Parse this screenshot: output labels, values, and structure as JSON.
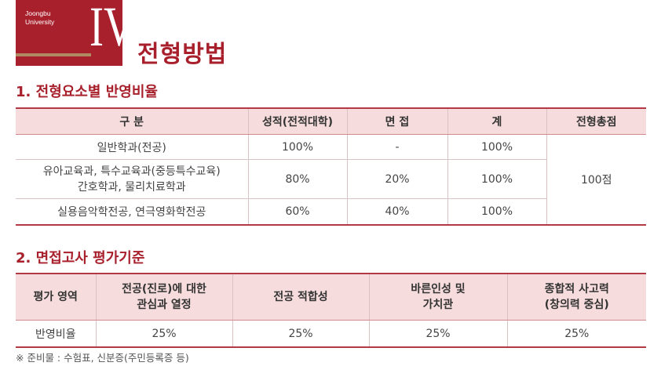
{
  "badge": {
    "university_line1": "Joongbu",
    "university_line2": "University",
    "numeral": "IV"
  },
  "page_title": "전형방법",
  "section1": {
    "title": "1. 전형요소별 반영비율",
    "headers": [
      "구 분",
      "성적(전적대학)",
      "면 접",
      "계",
      "전형총점"
    ],
    "rows": [
      {
        "category": "일반학과(전공)",
        "grade": "100%",
        "interview": "-",
        "total": "100%"
      },
      {
        "category_line1": "유아교육과, 특수교육과(중등특수교육)",
        "category_line2": "간호학과, 물리치료학과",
        "grade": "80%",
        "interview": "20%",
        "total": "100%"
      },
      {
        "category": "실용음악학전공, 연극영화학전공",
        "grade": "60%",
        "interview": "40%",
        "total": "100%"
      }
    ],
    "total_score": "100점"
  },
  "section2": {
    "title": "2. 면접고사 평가기준",
    "headers": [
      {
        "line1": "평가 영역",
        "line2": ""
      },
      {
        "line1": "전공(진로)에 대한",
        "line2": "관심과 열정"
      },
      {
        "line1": "전공 적합성",
        "line2": ""
      },
      {
        "line1": "바른인성 및",
        "line2": "가치관"
      },
      {
        "line1": "종합적 사고력",
        "line2": "(창의력 중심)"
      }
    ],
    "row": [
      "반영비율",
      "25%",
      "25%",
      "25%",
      "25%"
    ]
  },
  "note": "※ 준비물 : 수험표, 신분증(주민등록증 등)"
}
